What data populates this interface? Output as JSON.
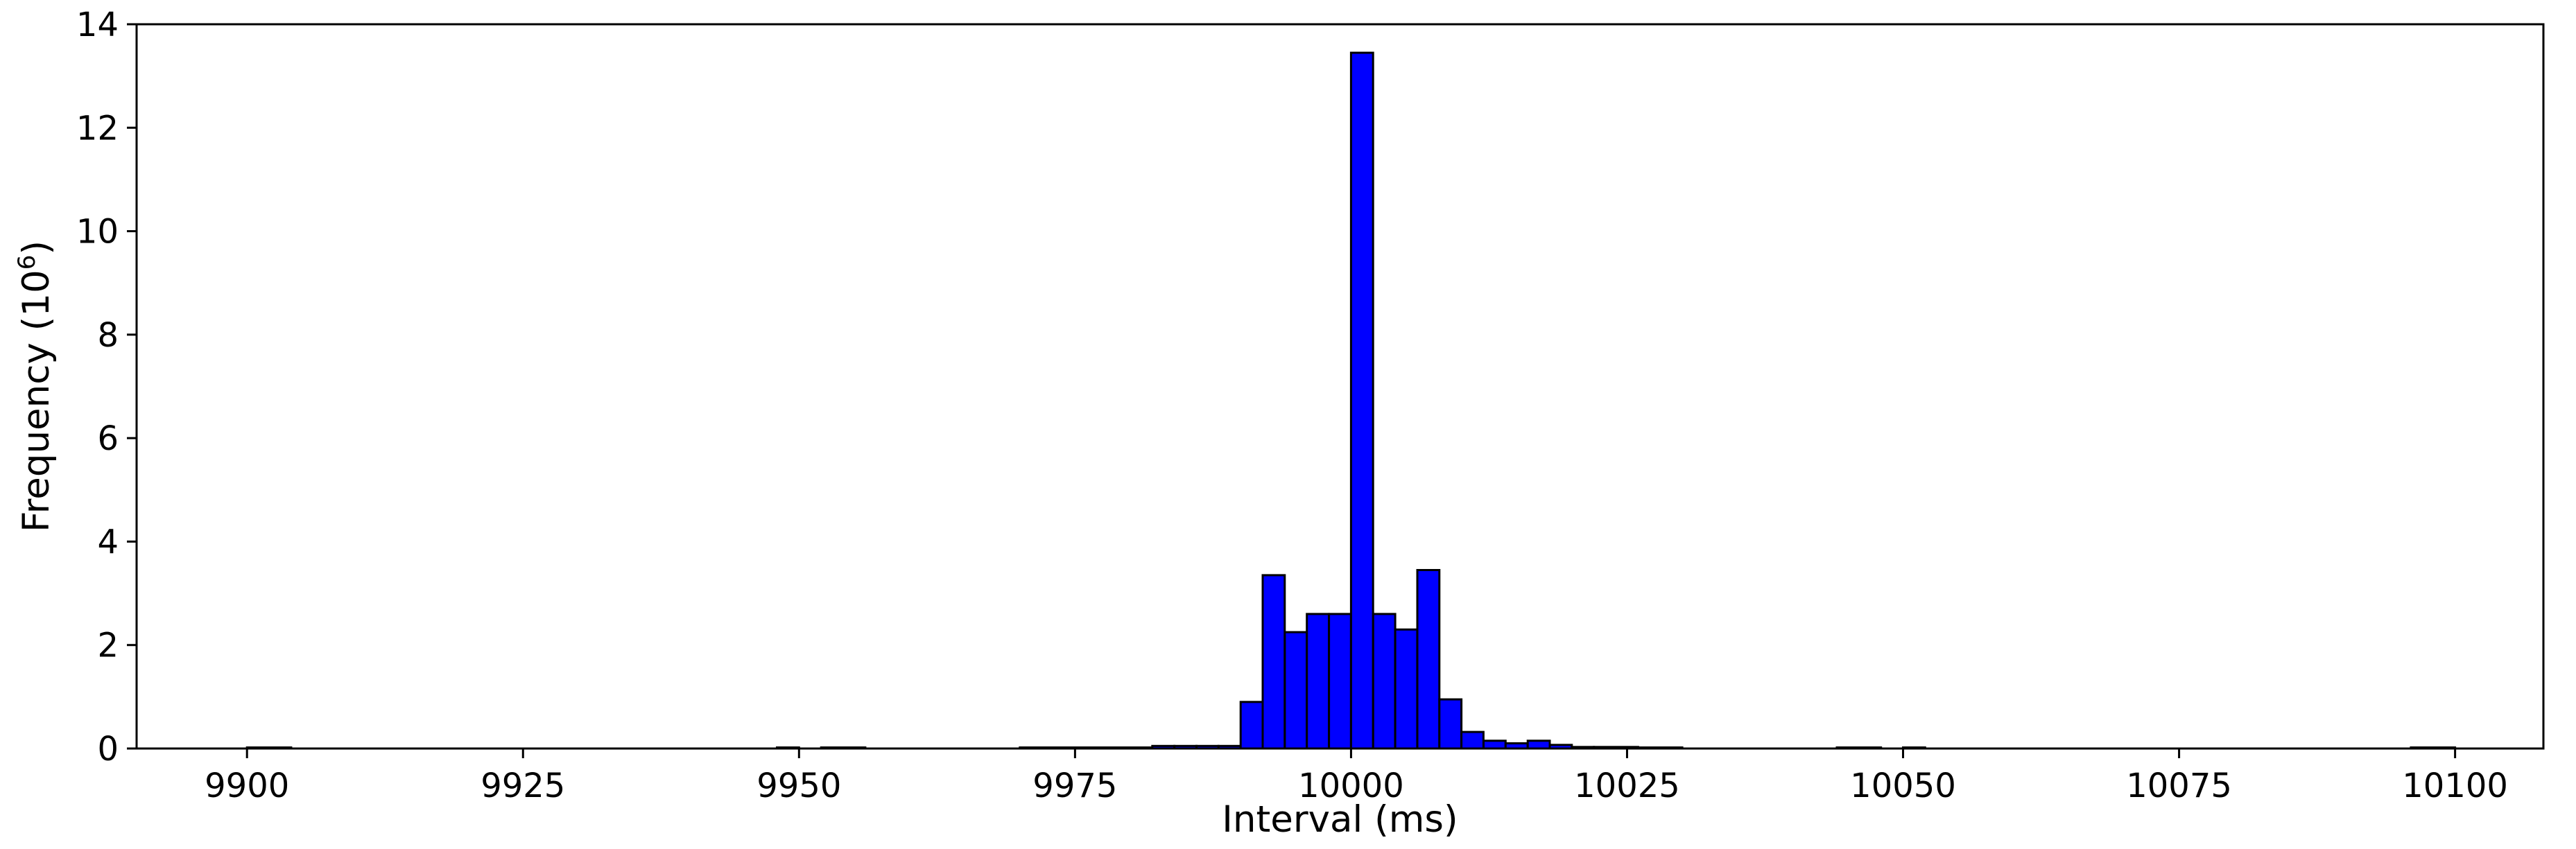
{
  "chart_data": {
    "type": "bar",
    "title": "",
    "xlabel": "Interval (ms)",
    "ylabel_main": "Frequency (10",
    "ylabel_sup": "6",
    "ylabel_end": ")",
    "xlim": [
      9890,
      10108
    ],
    "ylim": [
      0,
      14
    ],
    "xticks": [
      9900,
      9925,
      9950,
      9975,
      10000,
      10025,
      10050,
      10075,
      10100
    ],
    "xtick_labels": [
      "9900",
      "9925",
      "9950",
      "9975",
      "10000",
      "10025",
      "10050",
      "10075",
      "10100"
    ],
    "yticks": [
      0,
      2,
      4,
      6,
      8,
      10,
      12,
      14
    ],
    "ytick_labels": [
      "0",
      "2",
      "4",
      "6",
      "8",
      "10",
      "12",
      "14"
    ],
    "grid": false,
    "bar_color": "#0000ff",
    "bins": [
      {
        "x0": 9900,
        "x1": 9904,
        "value": 0.02
      },
      {
        "x0": 9948,
        "x1": 9950,
        "value": 0.02
      },
      {
        "x0": 9952,
        "x1": 9956,
        "value": 0.02
      },
      {
        "x0": 9970,
        "x1": 9974,
        "value": 0.02
      },
      {
        "x0": 9974,
        "x1": 9978,
        "value": 0.02
      },
      {
        "x0": 9978,
        "x1": 9982,
        "value": 0.02
      },
      {
        "x0": 9982,
        "x1": 9984,
        "value": 0.05
      },
      {
        "x0": 9984,
        "x1": 9986,
        "value": 0.05
      },
      {
        "x0": 9986,
        "x1": 9988,
        "value": 0.05
      },
      {
        "x0": 9988,
        "x1": 9990,
        "value": 0.05
      },
      {
        "x0": 9990,
        "x1": 9992,
        "value": 0.9
      },
      {
        "x0": 9992,
        "x1": 9994,
        "value": 3.35
      },
      {
        "x0": 9994,
        "x1": 9996,
        "value": 2.25
      },
      {
        "x0": 9996,
        "x1": 9998,
        "value": 2.6
      },
      {
        "x0": 9998,
        "x1": 10000,
        "value": 2.6
      },
      {
        "x0": 10000,
        "x1": 10002,
        "value": 13.45
      },
      {
        "x0": 10002,
        "x1": 10004,
        "value": 2.6
      },
      {
        "x0": 10004,
        "x1": 10006,
        "value": 2.3
      },
      {
        "x0": 10006,
        "x1": 10008,
        "value": 3.45
      },
      {
        "x0": 10008,
        "x1": 10010,
        "value": 0.95
      },
      {
        "x0": 10010,
        "x1": 10012,
        "value": 0.32
      },
      {
        "x0": 10012,
        "x1": 10014,
        "value": 0.15
      },
      {
        "x0": 10014,
        "x1": 10016,
        "value": 0.1
      },
      {
        "x0": 10016,
        "x1": 10018,
        "value": 0.15
      },
      {
        "x0": 10018,
        "x1": 10020,
        "value": 0.07
      },
      {
        "x0": 10020,
        "x1": 10022,
        "value": 0.03
      },
      {
        "x0": 10022,
        "x1": 10026,
        "value": 0.03
      },
      {
        "x0": 10026,
        "x1": 10030,
        "value": 0.02
      },
      {
        "x0": 10044,
        "x1": 10048,
        "value": 0.02
      },
      {
        "x0": 10050,
        "x1": 10052,
        "value": 0.02
      },
      {
        "x0": 10096,
        "x1": 10100,
        "value": 0.02
      }
    ]
  }
}
